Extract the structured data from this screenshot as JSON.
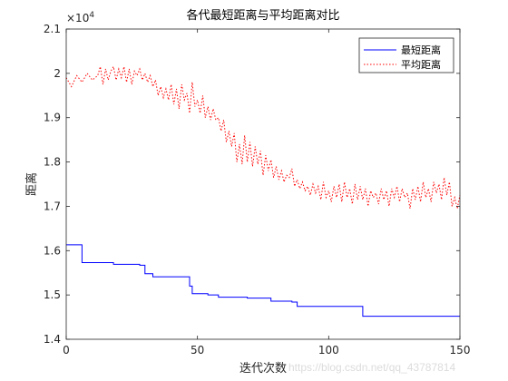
{
  "chart_data": {
    "type": "line",
    "title": "各代最短距离与平均距离对比",
    "xlabel": "迭代次数",
    "ylabel": "距离",
    "exponent_label": "×10",
    "exponent_power": "4",
    "xlim": [
      0,
      150
    ],
    "ylim": [
      14000,
      21000
    ],
    "xticks": [
      0,
      50,
      100,
      150
    ],
    "yticks": [
      14000,
      15000,
      16000,
      17000,
      18000,
      19000,
      20000,
      21000
    ],
    "ytick_labels": [
      "1.4",
      "1.5",
      "1.6",
      "1.7",
      "1.8",
      "1.9",
      "2",
      "2.1"
    ],
    "legend_position": "top-right",
    "grid": false,
    "series": [
      {
        "name": "最短距离",
        "style": "solid",
        "color": "#0000ff",
        "x": [
          0,
          6,
          6,
          18,
          18,
          28,
          28,
          30,
          30,
          33,
          33,
          47,
          47,
          48,
          48,
          54,
          54,
          58,
          58,
          69,
          69,
          78,
          78,
          86,
          86,
          88,
          88,
          113,
          113,
          150
        ],
        "y": [
          16130,
          16130,
          15730,
          15730,
          15690,
          15690,
          15670,
          15670,
          15480,
          15480,
          15410,
          15410,
          15200,
          15200,
          15030,
          15030,
          15000,
          15000,
          14950,
          14950,
          14930,
          14930,
          14860,
          14860,
          14840,
          14840,
          14740,
          14740,
          14520,
          14520
        ]
      },
      {
        "name": "平均距离",
        "style": "dotted",
        "color": "#ff0000",
        "x": [
          0,
          2,
          4,
          6,
          8,
          10,
          12,
          13,
          14,
          15,
          16,
          17,
          18,
          19,
          20,
          21,
          22,
          23,
          24,
          25,
          26,
          27,
          28,
          29,
          30,
          31,
          32,
          33,
          34,
          35,
          36,
          37,
          38,
          39,
          40,
          41,
          42,
          43,
          44,
          45,
          46,
          47,
          48,
          49,
          50,
          51,
          52,
          53,
          54,
          55,
          56,
          57,
          58,
          59,
          60,
          61,
          62,
          63,
          64,
          65,
          66,
          67,
          68,
          69,
          70,
          71,
          72,
          73,
          74,
          75,
          76,
          77,
          78,
          79,
          80,
          81,
          82,
          83,
          84,
          85,
          86,
          87,
          88,
          89,
          90,
          91,
          92,
          93,
          94,
          95,
          96,
          97,
          98,
          99,
          100,
          101,
          102,
          103,
          104,
          105,
          106,
          107,
          108,
          109,
          110,
          111,
          112,
          113,
          114,
          115,
          116,
          117,
          118,
          119,
          120,
          121,
          122,
          123,
          124,
          125,
          126,
          127,
          128,
          129,
          130,
          131,
          132,
          133,
          134,
          135,
          136,
          137,
          138,
          139,
          140,
          141,
          142,
          143,
          144,
          145,
          146,
          147,
          148,
          149,
          150
        ],
        "y": [
          19900,
          19700,
          19950,
          19800,
          20000,
          19850,
          19950,
          20150,
          19750,
          20100,
          19850,
          20050,
          20150,
          19850,
          20100,
          19900,
          20150,
          19800,
          20100,
          19750,
          20050,
          19950,
          20100,
          19850,
          20000,
          19800,
          19950,
          19700,
          19850,
          19500,
          19700,
          19450,
          19650,
          19400,
          19750,
          19300,
          19650,
          19200,
          19750,
          19400,
          19550,
          19100,
          19800,
          19250,
          19400,
          19100,
          19500,
          19000,
          19250,
          18950,
          19200,
          18950,
          19000,
          18700,
          18950,
          18450,
          18700,
          18350,
          18650,
          18000,
          18400,
          17950,
          18600,
          18000,
          18450,
          17900,
          18350,
          17950,
          18250,
          17700,
          18150,
          17800,
          18050,
          17650,
          17900,
          17600,
          17800,
          17550,
          17700,
          17650,
          17850,
          17450,
          17600,
          17400,
          17550,
          17350,
          17450,
          17250,
          17500,
          17300,
          17450,
          17150,
          17550,
          17200,
          17350,
          17100,
          17450,
          17200,
          17500,
          17100,
          17550,
          17200,
          17400,
          17050,
          17500,
          17150,
          17450,
          17150,
          17400,
          17000,
          17350,
          17200,
          17300,
          17050,
          17400,
          17150,
          17350,
          17000,
          17400,
          17200,
          17450,
          17100,
          17400,
          17200,
          17300,
          16950,
          17400,
          17150,
          17450,
          17100,
          17550,
          17200,
          17400,
          17100,
          17550,
          17300,
          17500,
          17150,
          17650,
          17250,
          17550,
          17000,
          17200,
          16950,
          17250
        ]
      }
    ]
  },
  "watermark": "https://blog.csdn.net/qq_43787814"
}
